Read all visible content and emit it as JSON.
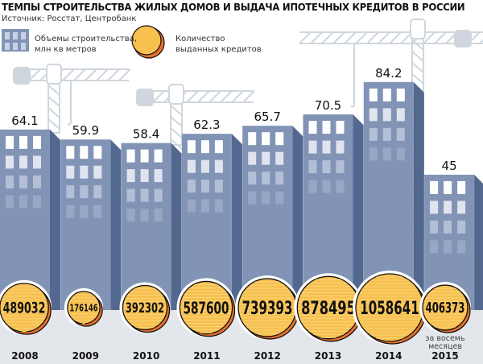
{
  "title": "ТЕМПЫ СТРОИТЕЛЬСТВА ЖИЛЫХ ДОМОВ И ВЫДАЧА ИПОТЕЧНЫХ КРЕДИТОВ В РОССИИ",
  "source": "Источник: Росстат, Центробанк",
  "legend": {
    "buildings_line1": "Объемы строительства,",
    "buildings_line2": "млн кв метров",
    "coins_line1": "Количество",
    "coins_line2": "выданных кредитов"
  },
  "colors": {
    "front": "#8294b6",
    "side": "#53688f",
    "coin": "#f7c04f",
    "coin_edge": "#e8702a",
    "ground": "#e3e6ea",
    "crane": "#cfd6dd"
  },
  "chart_data": {
    "type": "bar",
    "title": "ТЕМПЫ СТРОИТЕЛЬСТВА ЖИЛЫХ ДОМОВ И ВЫДАЧА ИПОТЕЧНЫХ КРЕДИТОВ В РОССИИ",
    "categories": [
      "2008",
      "2009",
      "2010",
      "2011",
      "2012",
      "2013",
      "2014",
      "2015"
    ],
    "series": [
      {
        "name": "Объемы строительства, млн кв метров",
        "values": [
          64.1,
          59.9,
          58.4,
          62.3,
          65.7,
          70.5,
          84.2,
          45
        ],
        "labels": [
          "64.1",
          "59.9",
          "58.4",
          "62.3",
          "65.7",
          "70.5",
          "84.2",
          "45"
        ]
      },
      {
        "name": "Количество выданных кредитов",
        "values": [
          489032,
          176146,
          392302,
          587600,
          739393,
          878495,
          1058641,
          406373
        ],
        "labels": [
          "489032",
          "176146",
          "392302",
          "587600",
          "739393",
          "878495",
          "1058641",
          "406373"
        ]
      }
    ],
    "annotation_2015": [
      "за восемь",
      "месяцев"
    ],
    "legend": "top-left"
  }
}
